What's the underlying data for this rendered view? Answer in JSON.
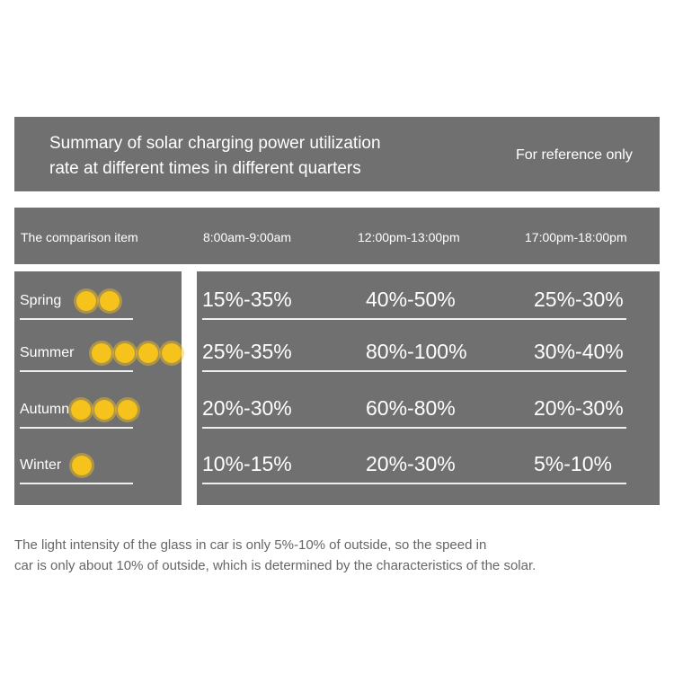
{
  "title": {
    "line1": "Summary of solar charging power utilization",
    "line2": "rate at different times in different quarters",
    "note": "For reference only"
  },
  "header": [
    "The comparison item",
    "8:00am-9:00am",
    "12:00pm-13:00pm",
    "17:00pm-18:00pm"
  ],
  "rows": [
    {
      "season": "Spring",
      "suns": 2,
      "values": [
        "15%-35%",
        "40%-50%",
        "25%-30%"
      ]
    },
    {
      "season": "Summer",
      "suns": 4,
      "values": [
        "25%-35%",
        "80%-100%",
        "30%-40%"
      ]
    },
    {
      "season": "Autumn",
      "suns": 3,
      "values": [
        "20%-30%",
        "60%-80%",
        "20%-30%"
      ]
    },
    {
      "season": "Winter",
      "suns": 1,
      "values": [
        "10%-15%",
        "20%-30%",
        "5%-10%"
      ]
    }
  ],
  "footer": {
    "line1": "The light intensity of the glass in car is only 5%-10% of outside, so the speed in",
    "line2": "car is only about 10% of outside, which is determined by the characteristics of the solar."
  },
  "colors": {
    "panel": "#707070",
    "sun": "#f6c21c"
  }
}
